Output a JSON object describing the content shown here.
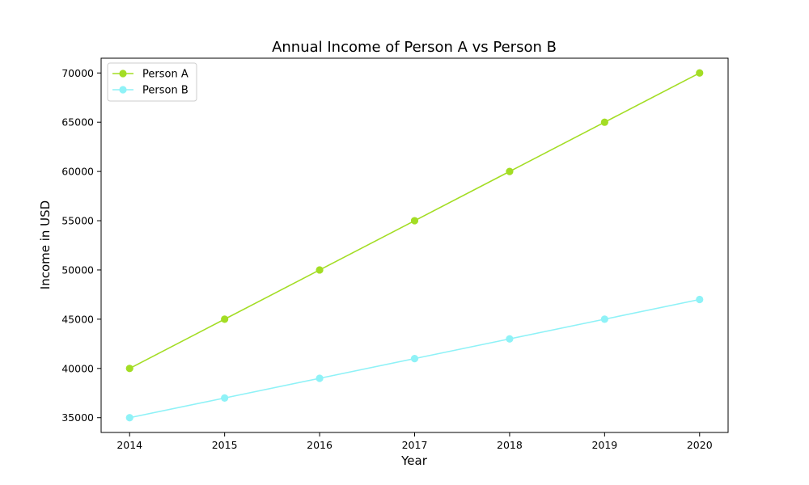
{
  "chart_data": {
    "type": "line",
    "title": "Annual Income of Person A vs Person B",
    "xlabel": "Year",
    "ylabel": "Income in USD",
    "x": [
      2014,
      2015,
      2016,
      2017,
      2018,
      2019,
      2020
    ],
    "x_tick_labels": [
      "2014",
      "2015",
      "2016",
      "2017",
      "2018",
      "2019",
      "2020"
    ],
    "y_ticks": [
      35000,
      40000,
      45000,
      50000,
      55000,
      60000,
      65000,
      70000
    ],
    "y_tick_labels": [
      "35000",
      "40000",
      "45000",
      "50000",
      "55000",
      "60000",
      "65000",
      "70000"
    ],
    "xlim": [
      2013.7,
      2020.3
    ],
    "ylim": [
      33500,
      71500
    ],
    "grid": false,
    "legend_position": "top-left",
    "series": [
      {
        "name": "Person A",
        "color": "#a3dd24",
        "marker": "circle",
        "values": [
          40000,
          45000,
          50000,
          55000,
          60000,
          65000,
          70000
        ]
      },
      {
        "name": "Person B",
        "color": "#8ff2f7",
        "marker": "circle",
        "values": [
          35000,
          37000,
          39000,
          41000,
          43000,
          45000,
          47000
        ]
      }
    ]
  }
}
